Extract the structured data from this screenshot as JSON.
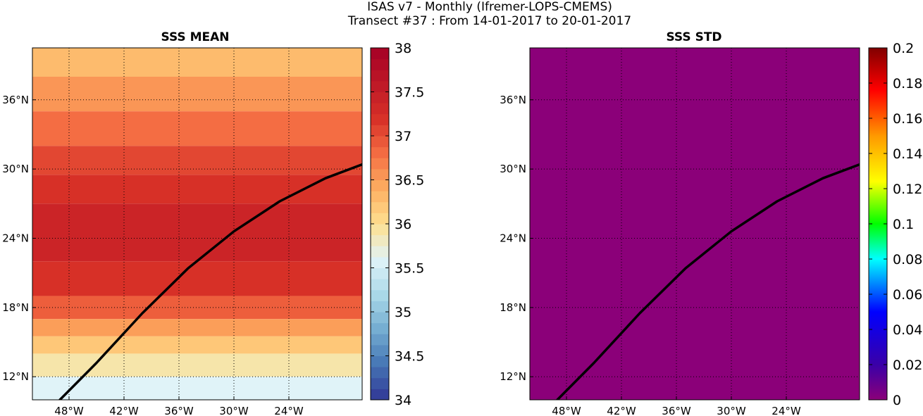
{
  "figure": {
    "title_line1": "ISAS v7 - Monthly (Ifremer-LOPS-CMEMS)",
    "title_line2": "Transect #37 : From 14-01-2017 to 20-01-2017"
  },
  "chart_data": [
    {
      "type": "heatmap",
      "title": "SSS MEAN",
      "xlabel": "",
      "ylabel": "",
      "xlim": [
        -52,
        -16
      ],
      "ylim": [
        10,
        40.5
      ],
      "x_ticks": [
        -48,
        -42,
        -36,
        -30,
        -24
      ],
      "x_tick_labels": [
        "48°W",
        "42°W",
        "36°W",
        "30°W",
        "24°W"
      ],
      "y_ticks": [
        12,
        18,
        24,
        30,
        36
      ],
      "y_tick_labels": [
        "12°N",
        "18°N",
        "24°N",
        "30°N",
        "36°N"
      ],
      "grid": true,
      "colorbar": {
        "range": [
          34,
          38
        ],
        "ticks": [
          34,
          34.5,
          35,
          35.5,
          36,
          36.5,
          37,
          37.5,
          38
        ],
        "tick_labels": [
          "34",
          "34.5",
          "35",
          "35.5",
          "36",
          "36.5",
          "37",
          "37.5",
          "38"
        ],
        "levels": 32,
        "colormap": "RdYlBu_r"
      },
      "field_bands": [
        {
          "lat_range": [
            38,
            40.5
          ],
          "value": 36.3
        },
        {
          "lat_range": [
            35,
            38
          ],
          "value": 36.55
        },
        {
          "lat_range": [
            32,
            35
          ],
          "value": 36.8
        },
        {
          "lat_range": [
            29.5,
            32
          ],
          "value": 37.05
        },
        {
          "lat_range": [
            27,
            29.5
          ],
          "value": 37.2
        },
        {
          "lat_range": [
            22,
            27
          ],
          "value": 37.4
        },
        {
          "lat_range": [
            19,
            22
          ],
          "value": 37.2
        },
        {
          "lat_range": [
            17,
            19
          ],
          "value": 36.9
        },
        {
          "lat_range": [
            15.5,
            17
          ],
          "value": 36.5
        },
        {
          "lat_range": [
            14,
            15.5
          ],
          "value": 36.2
        },
        {
          "lat_range": [
            12,
            14
          ],
          "value": 35.9
        },
        {
          "lat_range": [
            10,
            12
          ],
          "value": 35.6
        }
      ],
      "transect": {
        "lon": [
          -49,
          -45,
          -40,
          -35,
          -30,
          -25,
          -20,
          -16
        ],
        "lat": [
          10,
          13.2,
          17.5,
          21.4,
          24.6,
          27.2,
          29.2,
          30.4
        ]
      }
    },
    {
      "type": "heatmap",
      "title": "SSS STD",
      "xlabel": "",
      "ylabel": "",
      "xlim": [
        -52,
        -16
      ],
      "ylim": [
        10,
        40.5
      ],
      "x_ticks": [
        -48,
        -42,
        -36,
        -30,
        -24
      ],
      "x_tick_labels": [
        "48°W",
        "42°W",
        "36°W",
        "30°W",
        "24°W"
      ],
      "y_ticks": [
        12,
        18,
        24,
        30,
        36
      ],
      "y_tick_labels": [
        "12°N",
        "18°N",
        "24°N",
        "30°N",
        "36°N"
      ],
      "grid": true,
      "field_uniform_value": 0,
      "field_color": "#8b0079",
      "colorbar": {
        "range": [
          0,
          0.2
        ],
        "ticks": [
          0,
          0.02,
          0.04,
          0.06,
          0.08,
          0.1,
          0.12,
          0.14,
          0.16,
          0.18,
          0.2
        ],
        "tick_labels": [
          "0",
          "0.02",
          "0.04",
          "0.06",
          "0.08",
          "0.1",
          "0.12",
          "0.14",
          "0.16",
          "0.18",
          "0.2"
        ],
        "colormap": "jet-like"
      },
      "transect": {
        "lon": [
          -49,
          -45,
          -40,
          -35,
          -30,
          -25,
          -20,
          -16
        ],
        "lat": [
          10,
          13.2,
          17.5,
          21.4,
          24.6,
          27.2,
          29.2,
          30.4
        ]
      }
    }
  ]
}
